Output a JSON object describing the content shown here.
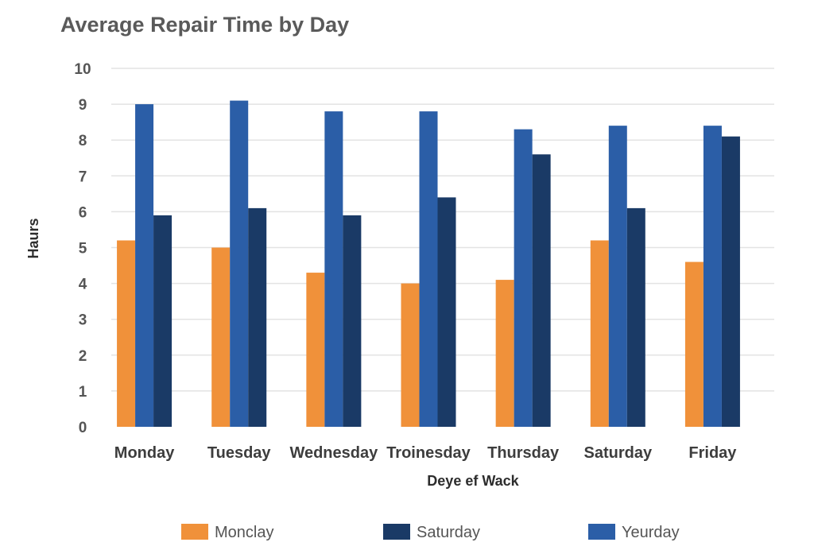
{
  "chart_data": {
    "type": "bar",
    "title": "Average Repair Time by Day",
    "xlabel": "Deye ef Wack",
    "ylabel": "Haurs",
    "ylim": [
      0,
      10
    ],
    "yticks": [
      "0",
      "1",
      "2",
      "3",
      "4",
      "5",
      "6",
      "7",
      "8",
      "9",
      "10"
    ],
    "grid": true,
    "legend_position": "bottom",
    "categories": [
      "Monday",
      "Tuesday",
      "Wednesday",
      "Troinesday",
      "Thursday",
      "Saturday",
      "Friday"
    ],
    "series": [
      {
        "name": "Monclay",
        "color": "#f0913a",
        "values": [
          5.2,
          5.0,
          4.3,
          4.0,
          4.1,
          5.2,
          4.6
        ]
      },
      {
        "name": "Yeurday",
        "color": "#2b5ea7",
        "values": [
          9.0,
          9.1,
          8.8,
          8.8,
          8.3,
          8.4,
          8.4
        ]
      },
      {
        "name": "Saturday",
        "color": "#1a3a66",
        "values": [
          5.9,
          6.1,
          5.9,
          6.4,
          7.6,
          6.1,
          8.1
        ]
      }
    ],
    "legend_order": [
      0,
      2,
      1
    ]
  }
}
